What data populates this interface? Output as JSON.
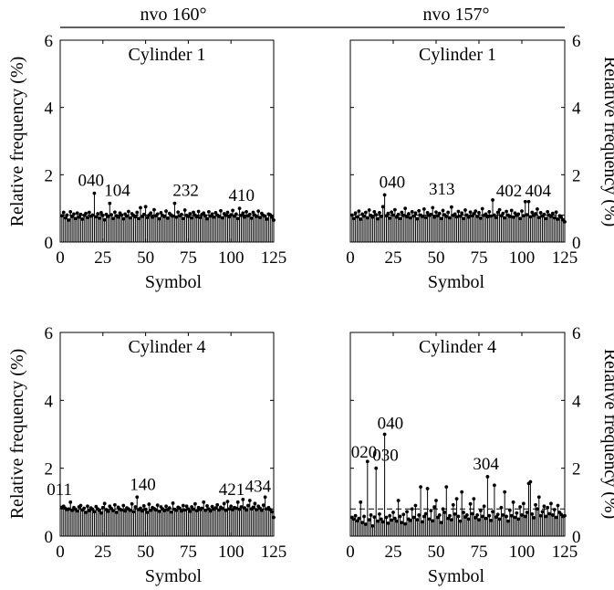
{
  "column_titles": [
    "nvo 160°",
    "nvo 157°"
  ],
  "ylabel": "Relative frequency (%)",
  "xlabel": "Symbol",
  "chart_data": [
    {
      "type": "bar",
      "column_title": "nvo 160°",
      "title": "Cylinder 1",
      "xlim": [
        0,
        125
      ],
      "ylim": [
        0,
        6
      ],
      "xticks": [
        0,
        25,
        50,
        75,
        100,
        125
      ],
      "yticks": [
        0,
        2,
        4,
        6
      ],
      "reference_line": 0.8,
      "annotations": [
        {
          "label": "040",
          "x": 20,
          "y": 1.45
        },
        {
          "label": "104",
          "x": 29,
          "y": 1.15
        },
        {
          "label": "232",
          "x": 67,
          "y": 1.15
        },
        {
          "label": "410",
          "x": 105,
          "y": 1.0
        }
      ],
      "values": [
        0.78,
        0.88,
        0.72,
        0.8,
        0.65,
        0.9,
        0.76,
        0.83,
        0.7,
        0.86,
        0.74,
        0.82,
        0.68,
        0.79,
        0.85,
        0.73,
        0.88,
        0.77,
        0.8,
        1.45,
        0.75,
        0.84,
        0.71,
        0.87,
        0.79,
        0.66,
        0.82,
        0.76,
        1.15,
        0.81,
        0.7,
        0.89,
        0.78,
        0.74,
        0.86,
        0.8,
        0.69,
        0.83,
        0.77,
        0.91,
        0.72,
        0.84,
        0.79,
        0.75,
        0.88,
        0.7,
        1.02,
        0.76,
        0.82,
        1.05,
        0.73,
        0.8,
        0.86,
        0.74,
        0.96,
        0.78,
        0.83,
        0.69,
        0.87,
        0.79,
        0.76,
        0.92,
        0.71,
        0.85,
        0.8,
        0.77,
        1.15,
        0.74,
        0.89,
        0.78,
        0.82,
        0.7,
        0.95,
        0.79,
        0.76,
        0.84,
        0.72,
        0.88,
        0.8,
        0.75,
        0.91,
        0.73,
        0.82,
        0.86,
        0.78,
        0.69,
        0.9,
        0.77,
        0.83,
        0.74,
        0.87,
        0.8,
        0.76,
        0.93,
        0.72,
        0.84,
        0.79,
        0.88,
        0.75,
        0.81,
        0.94,
        0.77,
        0.83,
        0.7,
        1.0,
        0.79,
        0.86,
        0.74,
        0.9,
        0.78,
        0.82,
        0.71,
        0.88,
        0.8,
        0.76,
        0.92,
        0.73,
        0.85,
        0.79,
        0.77,
        0.68,
        0.83,
        0.81,
        0.74,
        0.65
      ]
    },
    {
      "type": "bar",
      "column_title": "nvo 157°",
      "title": "Cylinder 1",
      "xlim": [
        0,
        125
      ],
      "ylim": [
        0,
        6
      ],
      "xticks": [
        0,
        25,
        50,
        75,
        100,
        125
      ],
      "yticks": [
        0,
        2,
        4,
        6
      ],
      "reference_line": 0.8,
      "annotations": [
        {
          "label": "040",
          "x": 20,
          "y": 1.4
        },
        {
          "label": "313",
          "x": 83,
          "y": 1.25
        },
        {
          "label": "402",
          "x": 102,
          "y": 1.2
        },
        {
          "label": "404",
          "x": 104,
          "y": 1.2
        }
      ],
      "values": [
        0.8,
        0.7,
        0.86,
        0.75,
        0.92,
        0.68,
        0.83,
        0.77,
        0.88,
        0.72,
        0.95,
        0.79,
        0.74,
        0.9,
        0.81,
        0.69,
        0.87,
        0.76,
        1.05,
        1.4,
        0.78,
        0.85,
        0.71,
        0.89,
        0.8,
        0.96,
        0.74,
        0.82,
        0.7,
        0.88,
        0.79,
        1.0,
        0.75,
        0.84,
        0.72,
        0.9,
        0.77,
        0.86,
        0.69,
        0.93,
        0.8,
        0.76,
        0.98,
        0.73,
        0.87,
        0.79,
        0.82,
        1.02,
        0.74,
        0.89,
        0.78,
        0.85,
        0.7,
        0.94,
        0.81,
        0.76,
        0.88,
        0.72,
        1.04,
        0.79,
        0.83,
        0.75,
        0.91,
        0.77,
        0.86,
        0.7,
        0.95,
        0.8,
        0.74,
        0.89,
        0.78,
        0.84,
        0.92,
        0.76,
        0.87,
        0.71,
        0.99,
        0.79,
        0.83,
        0.75,
        0.9,
        0.77,
        1.25,
        0.8,
        0.73,
        0.88,
        0.96,
        0.78,
        0.85,
        0.72,
        0.91,
        0.8,
        0.76,
        0.94,
        0.74,
        0.86,
        0.79,
        0.83,
        0.7,
        0.92,
        0.78,
        1.2,
        0.81,
        1.2,
        0.75,
        0.88,
        0.79,
        0.84,
        0.98,
        0.73,
        0.87,
        0.77,
        0.82,
        0.7,
        0.9,
        0.8,
        0.76,
        0.85,
        0.72,
        0.89,
        0.68,
        0.78,
        0.74,
        0.66,
        0.6
      ]
    },
    {
      "type": "bar",
      "column_title": "nvo 160°",
      "title": "Cylinder 4",
      "xlim": [
        0,
        125
      ],
      "ylim": [
        0,
        6
      ],
      "xticks": [
        0,
        25,
        50,
        75,
        100,
        125
      ],
      "yticks": [
        0,
        2,
        4,
        6
      ],
      "reference_line": 0.8,
      "annotations": [
        {
          "label": "011",
          "x": 6,
          "y": 1.0
        },
        {
          "label": "140",
          "x": 45,
          "y": 1.15
        },
        {
          "label": "421",
          "x": 111,
          "y": 1.05
        },
        {
          "label": "434",
          "x": 120,
          "y": 1.15
        }
      ],
      "values": [
        0.85,
        0.88,
        0.82,
        0.78,
        0.8,
        1.0,
        0.76,
        0.84,
        0.79,
        0.74,
        0.86,
        0.9,
        0.77,
        0.82,
        0.7,
        0.88,
        0.75,
        0.83,
        0.79,
        0.72,
        0.87,
        0.8,
        0.76,
        0.68,
        0.84,
        0.96,
        0.78,
        0.73,
        0.88,
        0.81,
        0.75,
        0.92,
        0.7,
        0.85,
        0.79,
        0.77,
        0.9,
        0.74,
        0.83,
        0.8,
        0.76,
        0.95,
        0.72,
        0.86,
        1.15,
        0.78,
        0.82,
        0.74,
        0.89,
        0.79,
        0.7,
        0.94,
        0.76,
        0.84,
        0.81,
        0.77,
        0.91,
        0.73,
        0.86,
        0.8,
        0.75,
        0.88,
        0.78,
        0.83,
        0.71,
        0.97,
        0.79,
        0.76,
        0.85,
        0.82,
        0.74,
        0.9,
        0.77,
        0.88,
        0.8,
        0.73,
        0.86,
        0.79,
        0.95,
        0.75,
        0.84,
        0.78,
        0.82,
        1.0,
        0.76,
        0.89,
        0.8,
        0.74,
        0.87,
        0.79,
        0.83,
        0.92,
        0.77,
        0.85,
        0.81,
        0.96,
        0.76,
        1.02,
        0.8,
        0.88,
        0.78,
        0.84,
        0.82,
        1.0,
        0.79,
        0.86,
        1.08,
        0.83,
        0.77,
        0.9,
        1.05,
        0.8,
        0.85,
        0.96,
        0.78,
        0.88,
        0.82,
        0.76,
        0.91,
        1.15,
        0.8,
        0.84,
        0.78,
        0.72,
        0.55
      ]
    },
    {
      "type": "bar",
      "column_title": "nvo 157°",
      "title": "Cylinder 4",
      "xlim": [
        0,
        125
      ],
      "ylim": [
        0,
        6
      ],
      "xticks": [
        0,
        25,
        50,
        75,
        100,
        125
      ],
      "yticks": [
        0,
        2,
        4,
        6
      ],
      "reference_line": 0.8,
      "annotations": [
        {
          "label": "020",
          "x": 10,
          "y": 2.2
        },
        {
          "label": "040",
          "x": 20,
          "y": 3.0
        },
        {
          "label": "030",
          "x": 15,
          "y": 2.0
        },
        {
          "label": "304",
          "x": 80,
          "y": 1.75
        }
      ],
      "values": [
        0.55,
        0.5,
        0.6,
        0.45,
        0.52,
        1.0,
        0.4,
        0.58,
        0.35,
        2.2,
        0.48,
        0.62,
        0.3,
        0.56,
        2.0,
        0.44,
        0.65,
        0.5,
        0.42,
        3.0,
        0.55,
        0.38,
        0.6,
        0.47,
        0.7,
        0.52,
        0.44,
        1.05,
        0.58,
        0.4,
        0.64,
        0.36,
        0.72,
        0.5,
        0.46,
        0.8,
        0.55,
        0.9,
        0.48,
        0.62,
        1.45,
        0.42,
        0.58,
        0.66,
        1.4,
        0.5,
        0.75,
        0.45,
        0.86,
        1.05,
        0.55,
        0.62,
        0.4,
        0.8,
        0.7,
        1.45,
        0.52,
        0.6,
        0.48,
        0.92,
        0.65,
        1.1,
        0.58,
        0.44,
        1.3,
        0.7,
        0.56,
        0.62,
        0.5,
        0.95,
        0.66,
        1.1,
        0.54,
        0.62,
        0.48,
        0.75,
        0.58,
        0.88,
        0.52,
        1.75,
        0.6,
        0.46,
        0.72,
        1.5,
        0.56,
        0.64,
        0.5,
        0.84,
        0.62,
        1.3,
        0.58,
        0.44,
        0.76,
        0.6,
        1.0,
        0.55,
        0.68,
        0.5,
        0.86,
        0.62,
        0.96,
        0.58,
        0.7,
        1.55,
        1.6,
        0.65,
        0.54,
        0.92,
        0.8,
        1.15,
        0.6,
        0.72,
        0.88,
        0.58,
        0.84,
        0.66,
        0.96,
        0.62,
        0.78,
        0.55,
        0.9,
        0.7,
        0.64,
        0.58,
        0.6
      ]
    }
  ]
}
